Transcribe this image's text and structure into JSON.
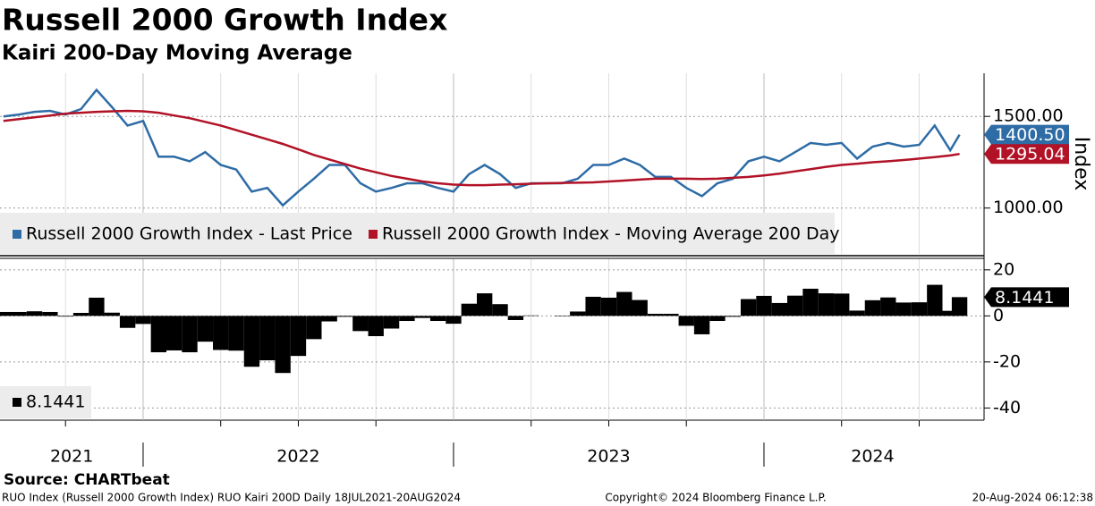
{
  "chart_data": [
    {
      "type": "line",
      "title": "Russell 2000 Growth Index",
      "subtitle": "Kairi 200-Day Moving Average",
      "y_label": "Index",
      "xlim": [
        2021.539,
        2024.709
      ],
      "ylim": [
        750,
        1735
      ],
      "yticks": [
        {
          "value": 1500,
          "label": "1500.00"
        },
        {
          "value": 1000,
          "label": "1000.00"
        }
      ],
      "xticks": [
        2022,
        2023,
        2024
      ],
      "x_minor_ticks": [
        2021.75,
        2022.25,
        2022.5,
        2022.75,
        2023.25,
        2023.5,
        2023.75,
        2024.25,
        2024.5
      ],
      "grid": true,
      "x": [
        2021.55,
        2021.6,
        2021.65,
        2021.7,
        2021.75,
        2021.8,
        2021.85,
        2021.9,
        2021.95,
        2022.0,
        2022.05,
        2022.1,
        2022.15,
        2022.2,
        2022.25,
        2022.3,
        2022.35,
        2022.4,
        2022.45,
        2022.5,
        2022.55,
        2022.6,
        2022.65,
        2022.7,
        2022.75,
        2022.8,
        2022.85,
        2022.9,
        2022.95,
        2023.0,
        2023.05,
        2023.1,
        2023.15,
        2023.2,
        2023.25,
        2023.3,
        2023.35,
        2023.4,
        2023.45,
        2023.5,
        2023.55,
        2023.6,
        2023.65,
        2023.7,
        2023.75,
        2023.8,
        2023.85,
        2023.9,
        2023.95,
        2024.0,
        2024.05,
        2024.1,
        2024.15,
        2024.2,
        2024.25,
        2024.3,
        2024.35,
        2024.4,
        2024.45,
        2024.5,
        2024.55,
        2024.6,
        2024.63
      ],
      "series": [
        {
          "name": "Russell 2000 Growth Index - Last Price",
          "color": "#2e6ca6",
          "last_label": "1400.50",
          "values": [
            1500,
            1510,
            1525,
            1530,
            1510,
            1540,
            1645,
            1550,
            1450,
            1475,
            1280,
            1280,
            1255,
            1305,
            1235,
            1210,
            1090,
            1110,
            1015,
            1090,
            1160,
            1235,
            1235,
            1135,
            1090,
            1110,
            1135,
            1135,
            1110,
            1090,
            1185,
            1235,
            1185,
            1110,
            1135,
            1135,
            1135,
            1160,
            1235,
            1235,
            1270,
            1235,
            1170,
            1170,
            1110,
            1065,
            1135,
            1160,
            1255,
            1280,
            1255,
            1305,
            1355,
            1345,
            1355,
            1270,
            1335,
            1355,
            1335,
            1345,
            1450,
            1315,
            1400.5
          ]
        },
        {
          "name": "Russell 2000 Growth Index - Moving Average 200 Day",
          "color": "#b11226",
          "last_label": "1295.04",
          "values": [
            1475,
            1485,
            1495,
            1505,
            1515,
            1520,
            1525,
            1528,
            1530,
            1528,
            1520,
            1505,
            1490,
            1470,
            1450,
            1425,
            1400,
            1375,
            1350,
            1320,
            1290,
            1265,
            1240,
            1215,
            1195,
            1175,
            1160,
            1145,
            1135,
            1128,
            1125,
            1125,
            1128,
            1130,
            1133,
            1135,
            1137,
            1138,
            1140,
            1145,
            1150,
            1155,
            1160,
            1160,
            1160,
            1158,
            1160,
            1165,
            1170,
            1178,
            1188,
            1200,
            1212,
            1225,
            1235,
            1242,
            1250,
            1255,
            1262,
            1270,
            1278,
            1287,
            1295.04
          ]
        }
      ]
    },
    {
      "type": "bar",
      "xlim": [
        2021.539,
        2024.709
      ],
      "ylim": [
        -45.3,
        24.6
      ],
      "yticks": [
        20,
        0,
        -20,
        -40
      ],
      "xticks": [
        2022,
        2023,
        2024
      ],
      "x_minor_ticks": [
        2021.75,
        2022.25,
        2022.5,
        2022.75,
        2023.25,
        2023.5,
        2023.75,
        2024.25,
        2024.5
      ],
      "x_labels": [
        {
          "value": 2021.77,
          "label": "2021"
        },
        {
          "value": 2022.5,
          "label": "2022"
        },
        {
          "value": 2023.5,
          "label": "2023"
        },
        {
          "value": 2024.35,
          "label": "2024"
        }
      ],
      "grid": true,
      "bar_width": 0.05,
      "x": [
        2021.55,
        2021.6,
        2021.65,
        2021.7,
        2021.75,
        2021.8,
        2021.85,
        2021.9,
        2021.95,
        2022.0,
        2022.05,
        2022.1,
        2022.15,
        2022.2,
        2022.25,
        2022.3,
        2022.35,
        2022.4,
        2022.45,
        2022.5,
        2022.55,
        2022.6,
        2022.65,
        2022.7,
        2022.75,
        2022.8,
        2022.85,
        2022.9,
        2022.95,
        2023.0,
        2023.05,
        2023.1,
        2023.15,
        2023.2,
        2023.25,
        2023.3,
        2023.35,
        2023.4,
        2023.45,
        2023.5,
        2023.55,
        2023.6,
        2023.65,
        2023.7,
        2023.75,
        2023.8,
        2023.85,
        2023.9,
        2023.95,
        2024.0,
        2024.05,
        2024.1,
        2024.15,
        2024.2,
        2024.25,
        2024.3,
        2024.35,
        2024.4,
        2024.45,
        2024.5,
        2024.55,
        2024.6,
        2024.63
      ],
      "series": [
        {
          "color": "#000000",
          "last_label": "8.1441",
          "values": [
            1.7,
            1.7,
            2.0,
            1.7,
            -0.3,
            1.3,
            7.9,
            1.4,
            -5.2,
            -3.5,
            -15.8,
            -15.0,
            -15.8,
            -11.2,
            -14.8,
            -15.1,
            -22.1,
            -19.3,
            -24.8,
            -17.4,
            -10.1,
            -2.4,
            -0.4,
            -6.6,
            -8.8,
            -5.5,
            -2.2,
            -0.9,
            -2.2,
            -3.4,
            5.3,
            9.8,
            5.1,
            -1.8,
            0.2,
            0,
            -0.2,
            1.9,
            8.3,
            7.9,
            10.4,
            6.9,
            0.9,
            0.9,
            -4.3,
            -8.0,
            -2.2,
            -0.4,
            7.3,
            8.7,
            5.6,
            8.8,
            11.8,
            9.8,
            9.7,
            2.3,
            6.8,
            8.0,
            5.8,
            5.9,
            13.5,
            2.2,
            8.1441
          ]
        }
      ]
    }
  ],
  "source": "Source: CHARTbeat",
  "footer": {
    "left": "RUO Index (Russell 2000 Growth Index) RUO Kairi 200D  Daily 18JUL2021-20AUG2024",
    "center": "Copyright© 2024 Bloomberg Finance L.P.",
    "right": "20-Aug-2024 06:12:38"
  }
}
